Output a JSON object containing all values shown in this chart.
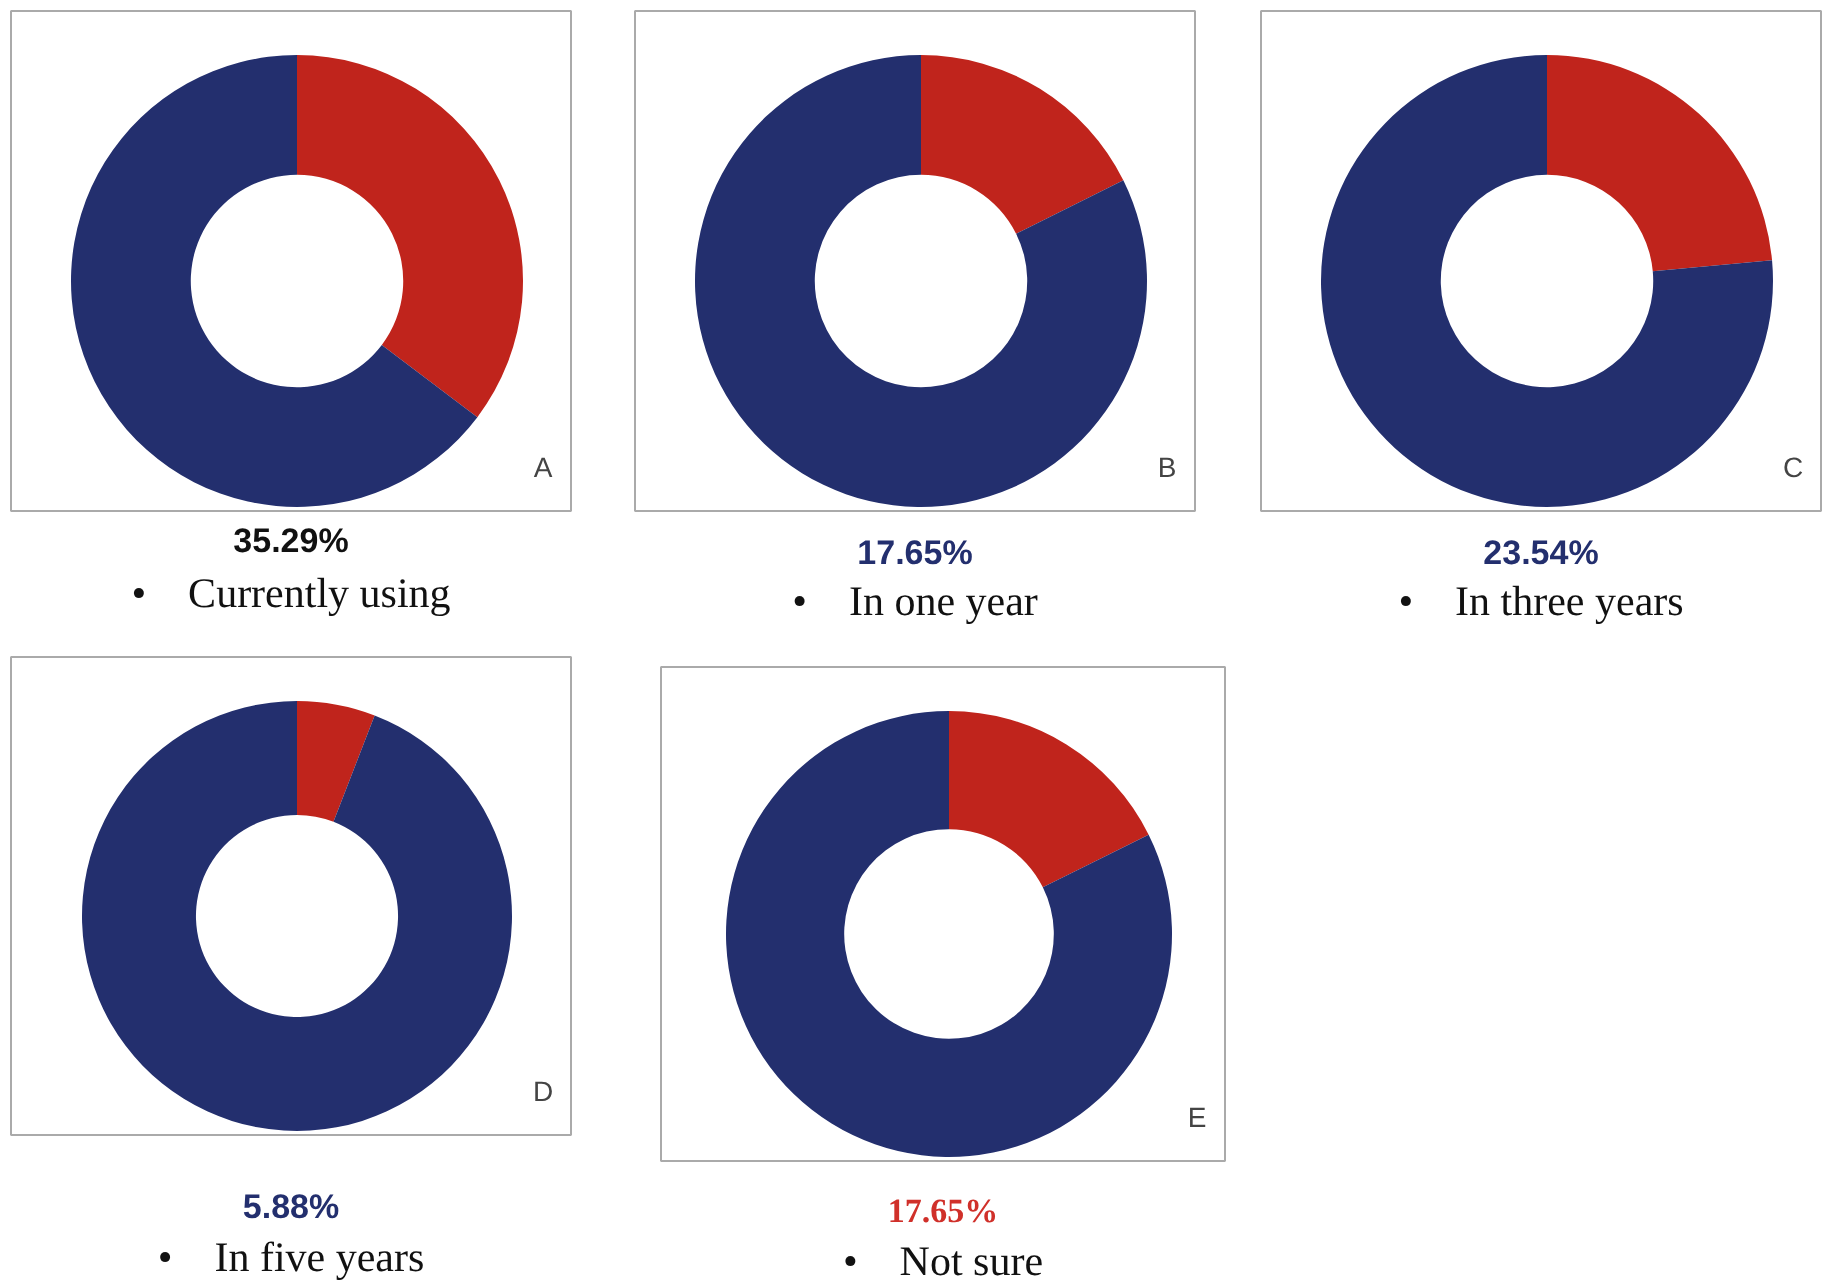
{
  "chart_data": [
    {
      "type": "donut",
      "title": "A",
      "categories": [
        null,
        null
      ],
      "values": [
        35.29,
        64.71
      ],
      "colors": [
        "#c0241c",
        "#232f6e"
      ],
      "annotations": [
        "35.29%",
        "• Currently using"
      ]
    },
    {
      "type": "donut",
      "title": "B",
      "categories": [
        null,
        null
      ],
      "values": [
        17.65,
        82.35
      ],
      "colors": [
        "#c0241c",
        "#232f6e"
      ],
      "annotations": [
        "17.65%",
        "• In one year"
      ]
    },
    {
      "type": "donut",
      "title": "C",
      "categories": [
        null,
        null
      ],
      "values": [
        23.54,
        76.46
      ],
      "colors": [
        "#c0241c",
        "#232f6e"
      ],
      "annotations": [
        "23.54%",
        "• In three years"
      ]
    },
    {
      "type": "donut",
      "title": "D",
      "categories": [
        null,
        null
      ],
      "values": [
        5.88,
        94.12
      ],
      "colors": [
        "#c0241c",
        "#232f6e"
      ],
      "annotations": [
        "5.88%",
        "• In five years"
      ]
    },
    {
      "type": "donut",
      "title": "E",
      "categories": [
        null,
        null
      ],
      "values": [
        17.65,
        82.35
      ],
      "colors": [
        "#c0241c",
        "#232f6e"
      ],
      "annotations": [
        "17.65%",
        "• Not sure"
      ]
    }
  ]
}
